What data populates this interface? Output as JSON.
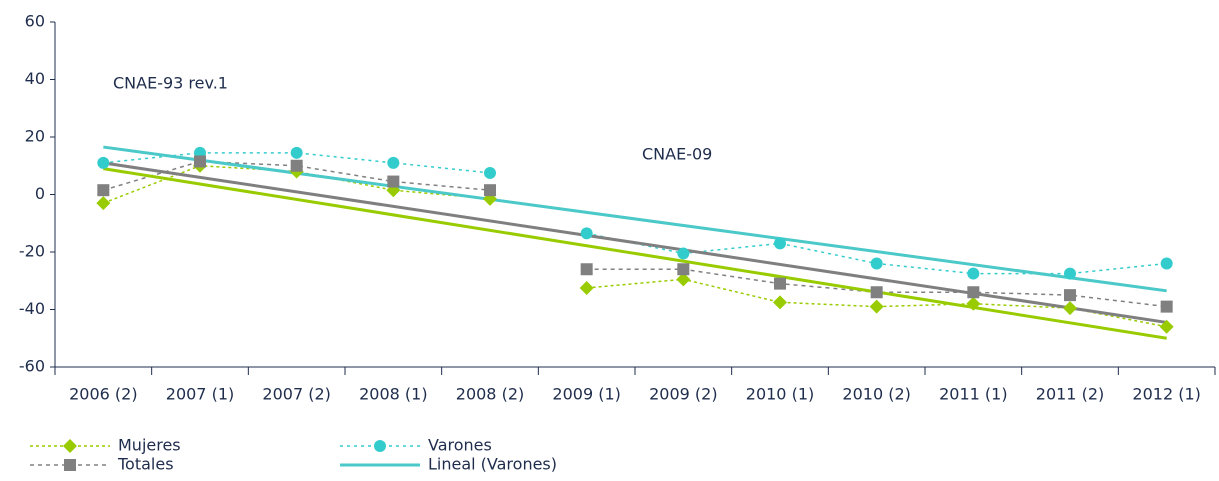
{
  "chart_data": {
    "type": "line",
    "categories": [
      "2006 (2)",
      "2007 (1)",
      "2007 (2)",
      "2008 (1)",
      "2008 (2)",
      "2009 (1)",
      "2009 (2)",
      "2010 (1)",
      "2010 (2)",
      "2011 (1)",
      "2011 (2)",
      "2012 (1)"
    ],
    "break_after_index": 4,
    "series": [
      {
        "name": "Mujeres",
        "color": "#99cc00",
        "marker": "diamond",
        "values": [
          -3,
          10,
          8,
          1.5,
          -1.5,
          -32.5,
          -29.5,
          -37.5,
          -39,
          -38,
          -39.5,
          -46
        ]
      },
      {
        "name": "Varones",
        "color": "#33cccc",
        "marker": "circle",
        "values": [
          11,
          14.5,
          14.5,
          11,
          7.5,
          -13.5,
          -20.5,
          -17,
          -24,
          -27.5,
          -27.5,
          -24
        ]
      },
      {
        "name": "Totales",
        "color": "#808080",
        "marker": "square",
        "values": [
          1.5,
          11.5,
          10,
          4.5,
          1.5,
          -26,
          -26,
          -31,
          -34,
          -34,
          -35,
          -39
        ]
      }
    ],
    "trends": [
      {
        "color": "#7f7f7f",
        "values": [
          11,
          -44.5
        ]
      },
      {
        "color": "#99cc00",
        "values": [
          9,
          -50
        ]
      },
      {
        "name": "Lineal (Varones)",
        "color": "#4bc8c8",
        "values": [
          16.5,
          -33.5
        ]
      }
    ],
    "annotations": [
      "CNAE-93 rev.1",
      "CNAE-09"
    ],
    "ylim": [
      -60,
      60
    ],
    "yticks": [
      -60,
      -40,
      -20,
      0,
      20,
      40,
      60
    ]
  }
}
